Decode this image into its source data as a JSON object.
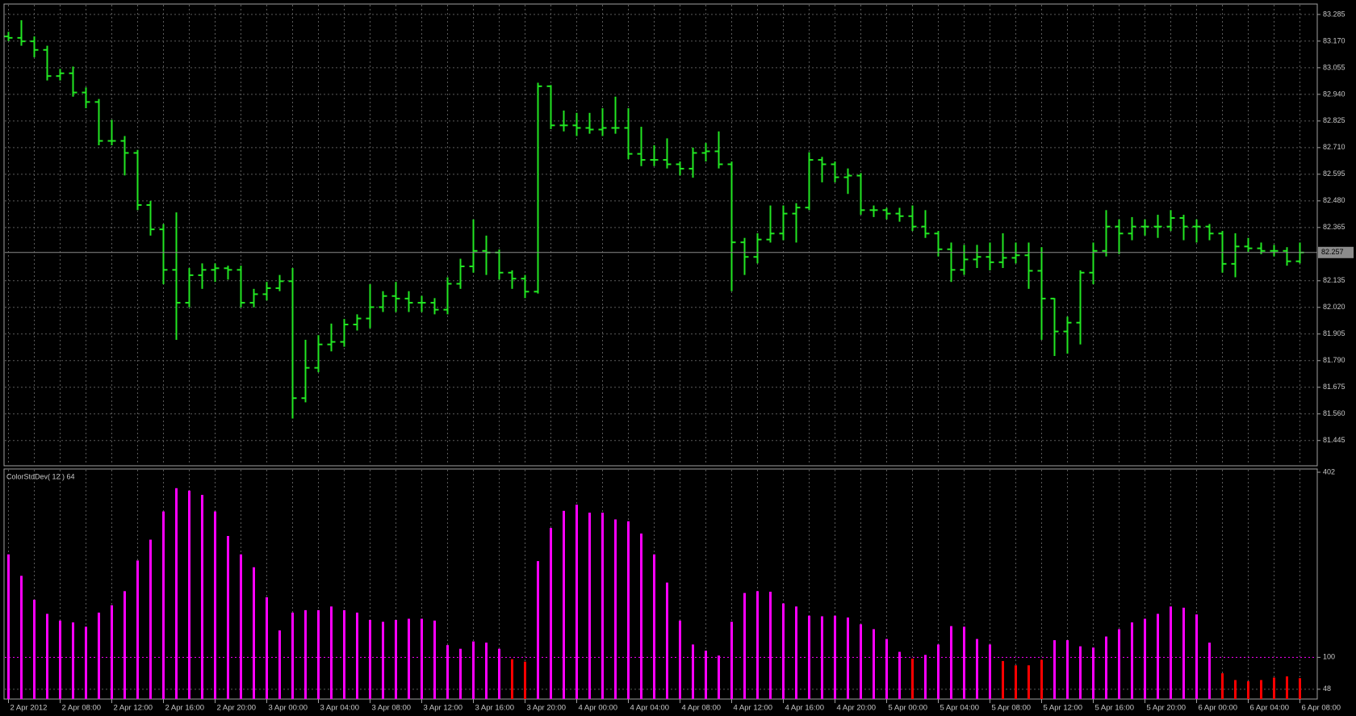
{
  "chart_data": [
    {
      "type": "ohlc",
      "categories": [
        "2 Apr 2012",
        null,
        null,
        null,
        "2 Apr 08:00",
        null,
        null,
        null,
        "2 Apr 12:00",
        null,
        null,
        null,
        "2 Apr 16:00",
        null,
        null,
        null,
        "2 Apr 20:00",
        null,
        null,
        null,
        "3 Apr 00:00",
        null,
        null,
        null,
        "3 Apr 04:00",
        null,
        null,
        null,
        "3 Apr 08:00",
        null,
        null,
        null,
        "3 Apr 12:00",
        null,
        null,
        null,
        "3 Apr 16:00",
        null,
        null,
        null,
        "3 Apr 20:00",
        null,
        null,
        null,
        "4 Apr 00:00",
        null,
        null,
        null,
        "4 Apr 04:00",
        null,
        null,
        null,
        "4 Apr 08:00",
        null,
        null,
        null,
        "4 Apr 12:00",
        null,
        null,
        null,
        "4 Apr 16:00",
        null,
        null,
        null,
        "4 Apr 20:00",
        null,
        null,
        null,
        "5 Apr 00:00",
        null,
        null,
        null,
        "5 Apr 04:00",
        null,
        null,
        null,
        "5 Apr 08:00",
        null,
        null,
        null,
        "5 Apr 12:00",
        null,
        null,
        null,
        "5 Apr 16:00",
        null,
        null,
        null,
        "5 Apr 20:00",
        null,
        null,
        null,
        "6 Apr 00:00",
        null,
        null,
        null,
        "6 Apr 04:00",
        null,
        null,
        null,
        "6 Apr 08:00"
      ],
      "bars": [
        [
          83.19,
          83.21,
          83.17,
          83.184
        ],
        [
          83.184,
          83.26,
          83.15,
          83.169
        ],
        [
          83.169,
          83.19,
          83.1,
          83.132
        ],
        [
          83.132,
          83.15,
          83.0,
          83.019
        ],
        [
          83.019,
          83.05,
          83.0,
          83.031
        ],
        [
          83.031,
          83.06,
          82.93,
          82.948
        ],
        [
          82.948,
          82.97,
          82.88,
          82.907
        ],
        [
          82.907,
          82.92,
          82.72,
          82.739
        ],
        [
          82.739,
          82.83,
          82.72,
          82.739
        ],
        [
          82.739,
          82.76,
          82.59,
          82.687
        ],
        [
          82.687,
          82.7,
          82.44,
          82.462
        ],
        [
          82.462,
          82.48,
          82.33,
          82.357
        ],
        [
          82.357,
          82.38,
          82.12,
          82.182
        ],
        [
          82.182,
          82.43,
          81.88,
          82.04
        ],
        [
          82.04,
          82.19,
          82.02,
          82.159
        ],
        [
          82.159,
          82.21,
          82.1,
          82.182
        ],
        [
          82.182,
          82.21,
          82.13,
          82.189
        ],
        [
          82.189,
          82.2,
          82.14,
          82.182
        ],
        [
          82.182,
          82.2,
          82.02,
          82.04
        ],
        [
          82.04,
          82.1,
          82.02,
          82.077
        ],
        [
          82.077,
          82.13,
          82.05,
          82.103
        ],
        [
          82.103,
          82.16,
          82.09,
          82.133
        ],
        [
          82.133,
          82.19,
          81.54,
          81.628
        ],
        [
          81.628,
          81.88,
          81.61,
          81.759
        ],
        [
          81.759,
          81.9,
          81.74,
          81.86
        ],
        [
          81.86,
          81.95,
          81.83,
          81.871
        ],
        [
          81.871,
          81.97,
          81.85,
          81.946
        ],
        [
          81.946,
          81.99,
          81.92,
          81.972
        ],
        [
          81.972,
          82.12,
          81.93,
          82.021
        ],
        [
          82.021,
          82.09,
          82.0,
          82.069
        ],
        [
          82.069,
          82.13,
          82.0,
          82.058
        ],
        [
          82.058,
          82.09,
          82.0,
          82.04
        ],
        [
          82.04,
          82.07,
          82.0,
          82.04
        ],
        [
          82.04,
          82.06,
          81.99,
          82.01
        ],
        [
          82.01,
          82.15,
          81.99,
          82.122
        ],
        [
          82.122,
          82.23,
          82.1,
          82.197
        ],
        [
          82.197,
          82.4,
          82.17,
          82.264
        ],
        [
          82.264,
          82.33,
          82.16,
          82.257
        ],
        [
          82.257,
          82.27,
          82.14,
          82.17
        ],
        [
          82.17,
          82.18,
          82.1,
          82.144
        ],
        [
          82.144,
          82.16,
          82.06,
          82.088
        ],
        [
          82.088,
          82.99,
          82.08,
          82.975
        ],
        [
          82.975,
          82.98,
          82.79,
          82.806
        ],
        [
          82.806,
          82.87,
          82.78,
          82.806
        ],
        [
          82.806,
          82.86,
          82.76,
          82.795
        ],
        [
          82.795,
          82.86,
          82.77,
          82.788
        ],
        [
          82.788,
          82.88,
          82.76,
          82.795
        ],
        [
          82.795,
          82.93,
          82.77,
          82.795
        ],
        [
          82.795,
          82.88,
          82.66,
          82.683
        ],
        [
          82.683,
          82.8,
          82.63,
          82.657
        ],
        [
          82.657,
          82.72,
          82.63,
          82.657
        ],
        [
          82.657,
          82.75,
          82.62,
          82.638
        ],
        [
          82.638,
          82.65,
          82.59,
          82.619
        ],
        [
          82.619,
          82.71,
          82.58,
          82.687
        ],
        [
          82.687,
          82.73,
          82.65,
          82.694
        ],
        [
          82.694,
          82.78,
          82.62,
          82.638
        ],
        [
          82.638,
          82.65,
          82.09,
          82.301
        ],
        [
          82.301,
          82.32,
          82.16,
          82.238
        ],
        [
          82.238,
          82.34,
          82.21,
          82.313
        ],
        [
          82.313,
          82.46,
          82.3,
          82.339
        ],
        [
          82.339,
          82.46,
          82.31,
          82.425
        ],
        [
          82.425,
          82.47,
          82.3,
          82.451
        ],
        [
          82.451,
          82.69,
          82.44,
          82.657
        ],
        [
          82.657,
          82.67,
          82.56,
          82.638
        ],
        [
          82.638,
          82.65,
          82.56,
          82.582
        ],
        [
          82.582,
          82.62,
          82.51,
          82.589
        ],
        [
          82.589,
          82.6,
          82.42,
          82.44
        ],
        [
          82.44,
          82.46,
          82.41,
          82.44
        ],
        [
          82.44,
          82.45,
          82.4,
          82.425
        ],
        [
          82.425,
          82.45,
          82.39,
          82.414
        ],
        [
          82.414,
          82.46,
          82.35,
          82.369
        ],
        [
          82.369,
          82.44,
          82.32,
          82.339
        ],
        [
          82.339,
          82.35,
          82.24,
          82.271
        ],
        [
          82.271,
          82.3,
          82.13,
          82.182
        ],
        [
          82.182,
          82.29,
          82.16,
          82.227
        ],
        [
          82.227,
          82.29,
          82.19,
          82.238
        ],
        [
          82.238,
          82.3,
          82.18,
          82.215
        ],
        [
          82.215,
          82.34,
          82.19,
          82.234
        ],
        [
          82.234,
          82.3,
          82.21,
          82.245
        ],
        [
          82.245,
          82.3,
          82.1,
          82.178
        ],
        [
          82.178,
          82.28,
          81.88,
          82.058
        ],
        [
          82.058,
          82.06,
          81.81,
          81.916
        ],
        [
          81.916,
          81.98,
          81.82,
          81.954
        ],
        [
          81.954,
          82.18,
          81.86,
          82.17
        ],
        [
          82.17,
          82.3,
          82.12,
          82.264
        ],
        [
          82.264,
          82.44,
          82.24,
          82.369
        ],
        [
          82.369,
          82.4,
          82.25,
          82.339
        ],
        [
          82.339,
          82.41,
          82.31,
          82.369
        ],
        [
          82.369,
          82.4,
          82.33,
          82.369
        ],
        [
          82.369,
          82.42,
          82.32,
          82.369
        ],
        [
          82.369,
          82.44,
          82.35,
          82.406
        ],
        [
          82.406,
          82.42,
          82.31,
          82.369
        ],
        [
          82.369,
          82.4,
          82.3,
          82.369
        ],
        [
          82.369,
          82.38,
          82.31,
          82.339
        ],
        [
          82.339,
          82.35,
          82.17,
          82.208
        ],
        [
          82.208,
          82.34,
          82.15,
          82.283
        ],
        [
          82.283,
          82.32,
          82.26,
          82.275
        ],
        [
          82.275,
          82.3,
          82.25,
          82.264
        ],
        [
          82.264,
          82.29,
          82.24,
          82.264
        ],
        [
          82.264,
          82.28,
          82.2,
          82.219
        ],
        [
          82.219,
          82.3,
          82.21,
          82.257
        ]
      ],
      "color": "#22e622",
      "ylim": [
        81.336,
        83.33
      ],
      "yticks": [
        83.285,
        {
          "value": 83.17,
          "label": "83.170"
        },
        83.055,
        {
          "value": 82.94,
          "label": "82.940"
        },
        82.825,
        {
          "value": 82.71,
          "label": "82.710"
        },
        82.595,
        {
          "value": 82.48,
          "label": "82.480"
        },
        82.365,
        82.135,
        {
          "value": 82.02,
          "label": "82.020"
        },
        81.905,
        {
          "value": 81.79,
          "label": "81.790"
        },
        81.675,
        {
          "value": 81.56,
          "label": "81.560"
        },
        81.445
      ],
      "last_price": 82.257,
      "grid": true
    },
    {
      "type": "histogram",
      "label": "ColorStdDev( 12 ) 64",
      "values": [
        268,
        233,
        194,
        171,
        160,
        157,
        150,
        173,
        185,
        208,
        258,
        292,
        338,
        376,
        372,
        365,
        338,
        298,
        268,
        247,
        198,
        144,
        173,
        177,
        177,
        183,
        177,
        173,
        161,
        158,
        161,
        163,
        163,
        160,
        120,
        114,
        126,
        124,
        114,
        97,
        93,
        257,
        311,
        339,
        349,
        336,
        336,
        325,
        322,
        302,
        268,
        222,
        160,
        121,
        111,
        103,
        158,
        205,
        208,
        207,
        188,
        183,
        168,
        167,
        168,
        165,
        154,
        146,
        130,
        109,
        98,
        104,
        121,
        151,
        150,
        130,
        121,
        94,
        87,
        87,
        96,
        128,
        128,
        118,
        116,
        134,
        146,
        157,
        163,
        171,
        183,
        181,
        170,
        124,
        74,
        63,
        61,
        63,
        67,
        69,
        66
      ],
      "color": "#ff00ff",
      "low_color": "#ff0000",
      "level": 100,
      "ylim": [
        32,
        402
      ],
      "yticks": [
        402,
        100,
        48
      ],
      "grid": true
    }
  ]
}
